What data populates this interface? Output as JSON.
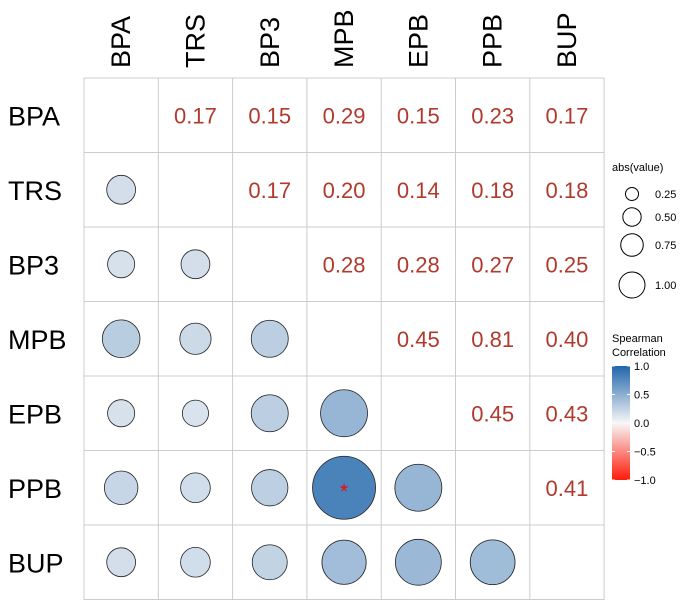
{
  "chart_data": {
    "type": "heatmap",
    "variables": [
      "BPA",
      "TRS",
      "BP3",
      "MPB",
      "EPB",
      "PPB",
      "BUP"
    ],
    "matrix": [
      [
        null,
        0.17,
        0.15,
        0.29,
        0.15,
        0.23,
        0.17
      ],
      [
        0.17,
        null,
        0.17,
        0.2,
        0.14,
        0.18,
        0.18
      ],
      [
        0.15,
        0.17,
        null,
        0.28,
        0.28,
        0.27,
        0.25
      ],
      [
        0.29,
        0.2,
        0.28,
        null,
        0.45,
        0.81,
        0.4
      ],
      [
        0.15,
        0.14,
        0.28,
        0.45,
        null,
        0.45,
        0.43
      ],
      [
        0.23,
        0.18,
        0.27,
        0.81,
        0.45,
        null,
        0.41
      ],
      [
        0.17,
        0.18,
        0.25,
        0.4,
        0.43,
        0.41,
        null
      ]
    ],
    "upper_labels": [
      [
        "",
        "0.17",
        "0.15",
        "0.29",
        "0.15",
        "0.23",
        "0.17"
      ],
      [
        "",
        "",
        "0.17",
        "0.20",
        "0.14",
        "0.18",
        "0.18"
      ],
      [
        "",
        "",
        "",
        "0.28",
        "0.28",
        "0.27",
        "0.25"
      ],
      [
        "",
        "",
        "",
        "",
        "0.45",
        "0.81",
        "0.40"
      ],
      [
        "",
        "",
        "",
        "",
        "",
        "0.45",
        "0.43"
      ],
      [
        "",
        "",
        "",
        "",
        "",
        "",
        "0.41"
      ],
      [
        "",
        "",
        "",
        "",
        "",
        "",
        ""
      ]
    ],
    "significance": [
      {
        "row": "PPB",
        "col": "MPB",
        "mark": "*"
      }
    ],
    "size_legend": {
      "title": "abs(value)",
      "values": [
        0.25,
        0.5,
        0.75,
        1.0
      ],
      "labels": [
        "0.25",
        "0.50",
        "0.75",
        "1.00"
      ]
    },
    "color_legend": {
      "title_line1": "Spearman",
      "title_line2": "Correlation",
      "range": [
        -1.0,
        1.0
      ],
      "ticks": [
        "1.0",
        "0.5",
        "0.0",
        "−0.5",
        "−1.0"
      ]
    },
    "colors": {
      "text_values": "#b03a2e",
      "positive": "#2166ac",
      "neutral": "#f7f7f7",
      "negative": "#ff1a0a",
      "grid": "#cccccc",
      "significance": "#ff0000"
    }
  }
}
